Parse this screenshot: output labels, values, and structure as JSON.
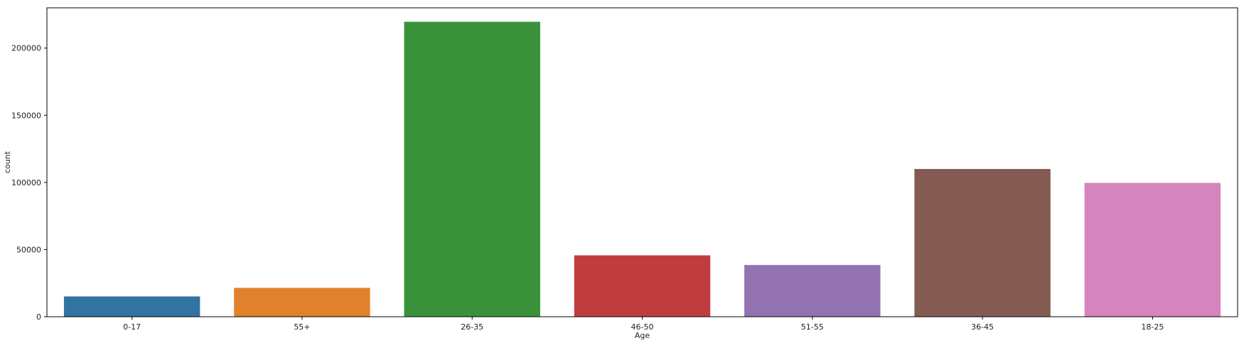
{
  "chart_data": {
    "type": "bar",
    "title": "",
    "xlabel": "Age",
    "ylabel": "count",
    "categories": [
      "0-17",
      "55+",
      "26-35",
      "46-50",
      "51-55",
      "36-45",
      "18-25"
    ],
    "values": [
      15102,
      21504,
      219587,
      45701,
      38501,
      110013,
      99660
    ],
    "ylim": [
      0,
      230000
    ],
    "yticks": [
      0,
      50000,
      100000,
      150000,
      200000
    ],
    "ytick_labels": [
      "0",
      "50000",
      "100000",
      "150000",
      "200000"
    ],
    "colors": [
      "#3274a1",
      "#e1812c",
      "#3a923a",
      "#c03d3e",
      "#9372b2",
      "#845b53",
      "#d684bd"
    ],
    "grid": false,
    "legend": "none"
  }
}
